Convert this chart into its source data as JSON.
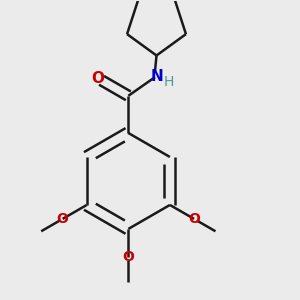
{
  "background_color": "#ebebeb",
  "bond_color": "#1a1a1a",
  "oxygen_color": "#cc0000",
  "nitrogen_color": "#0000cc",
  "hydrogen_color": "#4d9999",
  "bond_width": 1.8,
  "dbo": 0.018,
  "figsize": [
    3.0,
    3.0
  ],
  "dpi": 100,
  "xlim": [
    0.05,
    0.95
  ],
  "ylim": [
    0.02,
    0.98
  ]
}
